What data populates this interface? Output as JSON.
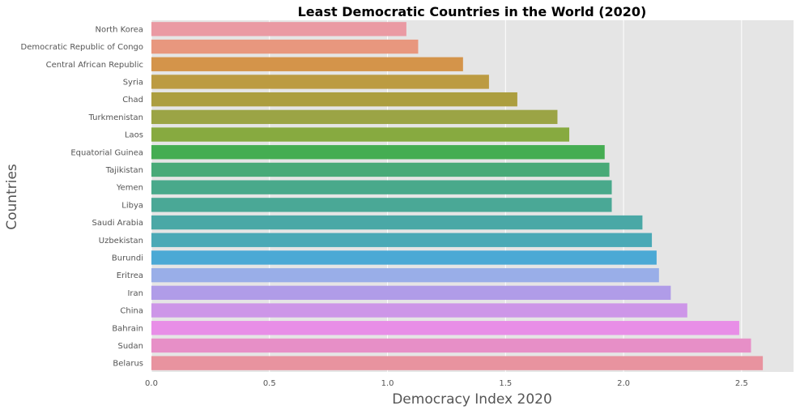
{
  "chart_data": {
    "type": "bar",
    "orientation": "horizontal",
    "title": "Least Democratic Countries in the World (2020)",
    "xlabel": "Democracy Index 2020",
    "ylabel": "Countries",
    "xlim": [
      0,
      2.72
    ],
    "xticks": [
      0,
      0.5,
      1,
      1.5,
      2,
      2.5
    ],
    "xtick_labels": [
      "0.0",
      "0.5",
      "1.0",
      "1.5",
      "2.0",
      "2.5"
    ],
    "grid": true,
    "categories": [
      "North Korea",
      "Democratic Republic of Congo",
      "Central African Republic",
      "Syria",
      "Chad",
      "Turkmenistan",
      "Laos",
      "Equatorial Guinea",
      "Tajikistan",
      "Yemen",
      "Libya",
      "Saudi Arabia",
      "Uzbekistan",
      "Burundi",
      "Eritrea",
      "Iran",
      "China",
      "Bahrain",
      "Sudan",
      "Belarus"
    ],
    "values": [
      1.08,
      1.13,
      1.32,
      1.43,
      1.55,
      1.72,
      1.77,
      1.92,
      1.94,
      1.95,
      1.95,
      2.08,
      2.12,
      2.14,
      2.15,
      2.2,
      2.27,
      2.49,
      2.54,
      2.59
    ],
    "colors": [
      "#ea9aa3",
      "#e8977e",
      "#d4944a",
      "#bc9b42",
      "#ac9e3f",
      "#9ba445",
      "#87aa40",
      "#45ad52",
      "#48aa78",
      "#49a98b",
      "#4aa896",
      "#4aa8a6",
      "#4aa9b6",
      "#4ba9d5",
      "#99aee8",
      "#b09ce8",
      "#cd96e8",
      "#e88ee7",
      "#e78fc7",
      "#e8939f"
    ],
    "style": {
      "background": "#e5e5e5",
      "grid_color": "#ffffff"
    }
  }
}
